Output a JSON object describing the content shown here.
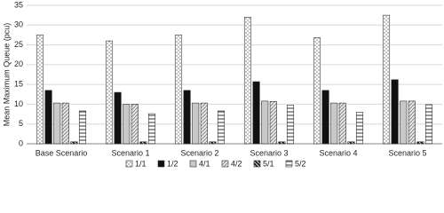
{
  "chart_data": {
    "type": "bar",
    "y_label": "Mean Maximum Queue (pcu)",
    "categories": [
      "Base Scenario",
      "Scenario 1",
      "Scenario 2",
      "Scenario 3",
      "Scenario 4",
      "Scenario 5"
    ],
    "series": [
      {
        "name": "1/1",
        "color": "#ffffff",
        "values": [
          27.5,
          26,
          27.5,
          32,
          26.8,
          32.5
        ]
      },
      {
        "name": "1/2",
        "color": "#111111",
        "values": [
          13.5,
          13,
          13.5,
          15.7,
          13.5,
          16.2
        ]
      },
      {
        "name": "4/1",
        "color": "#c8c8c8",
        "values": [
          10.3,
          10,
          10.3,
          10.8,
          10.3,
          10.8
        ]
      },
      {
        "name": "4/2",
        "color": "#e6e6e6",
        "values": [
          10.3,
          10,
          10.3,
          10.7,
          10.3,
          10.8
        ]
      },
      {
        "name": "5/1",
        "color": "#222222",
        "values": [
          0.5,
          0.5,
          0.5,
          0.5,
          0.5,
          0.5
        ]
      },
      {
        "name": "5/2",
        "color": "#ffffff",
        "values": [
          8.3,
          7.6,
          8.3,
          9.8,
          8,
          9.9
        ]
      }
    ],
    "ylim": [
      0,
      35
    ],
    "yticks": [
      0,
      5,
      10,
      15,
      20,
      25,
      30,
      35
    ],
    "grid": true
  }
}
